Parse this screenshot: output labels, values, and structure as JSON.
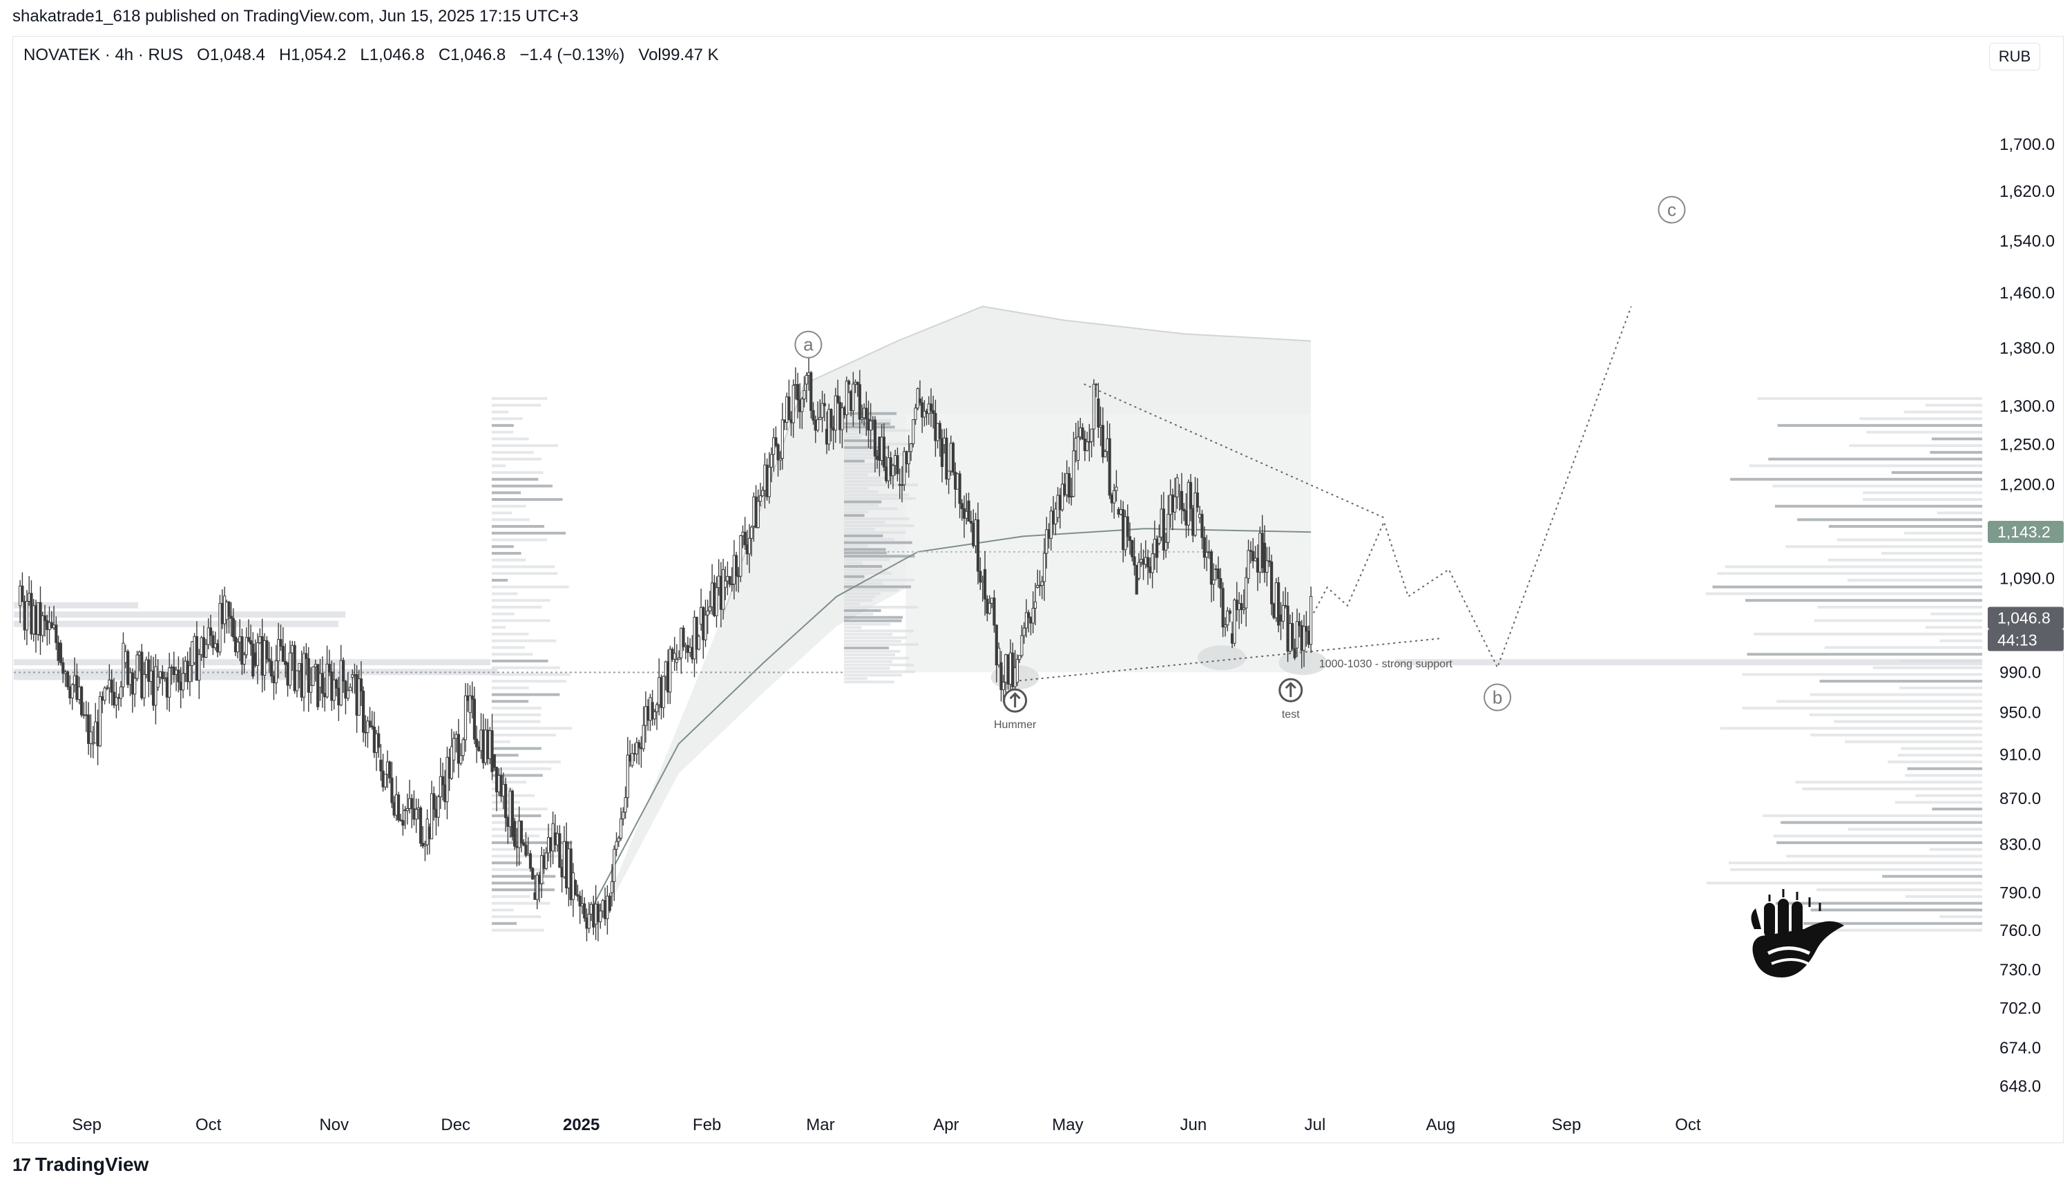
{
  "header": {
    "published_line": "shakatrade1_618 published on TradingView.com, Jun 15, 2025 17:15 UTC+3"
  },
  "legend": {
    "symbol": "NOVATEK · 4h · RUS",
    "o_label": "O",
    "o_val": "1,048.4",
    "h_label": "H",
    "h_val": "1,054.2",
    "l_label": "L",
    "l_val": "1,046.8",
    "c_label": "C",
    "c_val": "1,046.8",
    "change": "−1.4 (−0.13%)",
    "vol_label": "Vol",
    "vol_val": "99.47 K"
  },
  "currency_button": "RUB",
  "footer": {
    "brand": "TradingView",
    "mark": "17"
  },
  "colors": {
    "candle": "#3c3c3c",
    "profile": "#dcdfe2",
    "profile_dark": "#9aa0a6",
    "vwap": "#7d8f86",
    "band": "#edf0ef",
    "badge_green": "#7d9a8d",
    "badge_gray": "#5d6066"
  },
  "chart_data": {
    "type": "candlestick",
    "interval": "4h",
    "symbol": "NOVATEK",
    "currency": "RUB",
    "y_scale": "log",
    "ylim": [
      640,
      1760
    ],
    "x_labels": [
      "Sep",
      "Oct",
      "Nov",
      "Dec",
      "2025",
      "Feb",
      "Mar",
      "Apr",
      "May",
      "Jun",
      "Jul",
      "Aug",
      "Sep",
      "Oct"
    ],
    "y_ticks": [
      "1,700.0",
      "1,620.0",
      "1,540.0",
      "1,460.0",
      "1,380.0",
      "1,300.0",
      "1,250.0",
      "1,200.0",
      "1,090.0",
      "990.0",
      "950.0",
      "910.0",
      "870.0",
      "830.0",
      "790.0",
      "760.0",
      "730.0",
      "702.0",
      "674.0",
      "648.0"
    ],
    "y_tick_values": [
      1700,
      1620,
      1540,
      1460,
      1380,
      1300,
      1250,
      1200,
      1090,
      990,
      950,
      910,
      870,
      830,
      790,
      760,
      730,
      702,
      674,
      648
    ],
    "price_badges": [
      {
        "text": "1,143.2",
        "value": 1143.2,
        "style": "green"
      },
      {
        "text": "1,046.8",
        "value": 1046.8,
        "style": "gray"
      },
      {
        "text": "44:13",
        "value": null,
        "style": "gray-sub"
      }
    ],
    "price_path": [
      [
        "2024-08-15",
        1060
      ],
      [
        "2024-08-25",
        1020
      ],
      [
        "2024-09-02",
        920
      ],
      [
        "2024-09-10",
        1000
      ],
      [
        "2024-09-18",
        975
      ],
      [
        "2024-09-27",
        1000
      ],
      [
        "2024-10-05",
        1045
      ],
      [
        "2024-10-12",
        1010
      ],
      [
        "2024-10-20",
        1000
      ],
      [
        "2024-10-28",
        975
      ],
      [
        "2024-11-05",
        985
      ],
      [
        "2024-11-12",
        905
      ],
      [
        "2024-11-18",
        860
      ],
      [
        "2024-11-24",
        845
      ],
      [
        "2024-11-30",
        905
      ],
      [
        "2024-12-04",
        950
      ],
      [
        "2024-12-10",
        910
      ],
      [
        "2024-12-15",
        850
      ],
      [
        "2024-12-20",
        790
      ],
      [
        "2024-12-25",
        840
      ],
      [
        "2024-12-30",
        800
      ],
      [
        "2025-01-04",
        765
      ],
      [
        "2025-01-08",
        790
      ],
      [
        "2025-01-13",
        900
      ],
      [
        "2025-01-18",
        960
      ],
      [
        "2025-01-24",
        1000
      ],
      [
        "2025-01-30",
        1040
      ],
      [
        "2025-02-05",
        1080
      ],
      [
        "2025-02-12",
        1150
      ],
      [
        "2025-02-18",
        1250
      ],
      [
        "2025-02-25",
        1330
      ],
      [
        "2025-03-02",
        1270
      ],
      [
        "2025-03-08",
        1320
      ],
      [
        "2025-03-15",
        1260
      ],
      [
        "2025-03-20",
        1200
      ],
      [
        "2025-03-25",
        1310
      ],
      [
        "2025-03-31",
        1250
      ],
      [
        "2025-04-06",
        1180
      ],
      [
        "2025-04-10",
        1100
      ],
      [
        "2025-04-14",
        1000
      ],
      [
        "2025-04-18",
        980
      ],
      [
        "2025-04-23",
        1080
      ],
      [
        "2025-04-28",
        1160
      ],
      [
        "2025-05-03",
        1230
      ],
      [
        "2025-05-08",
        1310
      ],
      [
        "2025-05-13",
        1170
      ],
      [
        "2025-05-18",
        1090
      ],
      [
        "2025-05-23",
        1130
      ],
      [
        "2025-05-28",
        1190
      ],
      [
        "2025-06-02",
        1160
      ],
      [
        "2025-06-06",
        1100
      ],
      [
        "2025-06-10",
        1030
      ],
      [
        "2025-06-14",
        1090
      ],
      [
        "2025-06-18",
        1130
      ],
      [
        "2025-06-22",
        1050
      ],
      [
        "2025-06-26",
        1015
      ],
      [
        "2025-06-30",
        1046.8
      ]
    ],
    "projection_path": [
      [
        "2025-07-04",
        1080
      ],
      [
        "2025-07-09",
        1060
      ],
      [
        "2025-07-18",
        1155
      ],
      [
        "2025-07-24",
        1070
      ],
      [
        "2025-08-03",
        1100
      ],
      [
        "2025-08-15",
        995
      ],
      [
        "2025-09-17",
        1440
      ]
    ],
    "vwap_line": [
      [
        "2025-01-04",
        780
      ],
      [
        "2025-01-25",
        920
      ],
      [
        "2025-02-15",
        1000
      ],
      [
        "2025-03-05",
        1070
      ],
      [
        "2025-03-25",
        1120
      ],
      [
        "2025-04-20",
        1138
      ],
      [
        "2025-05-20",
        1147
      ],
      [
        "2025-06-30",
        1143
      ]
    ],
    "upper_band": [
      [
        "2025-02-05",
        1050
      ],
      [
        "2025-02-25",
        1330
      ],
      [
        "2025-03-20",
        1390
      ],
      [
        "2025-04-10",
        1440
      ],
      [
        "2025-04-30",
        1420
      ],
      [
        "2025-05-30",
        1400
      ],
      [
        "2025-06-30",
        1390
      ]
    ],
    "resistance_line": [
      [
        "2025-05-05",
        1330
      ],
      [
        "2025-07-18",
        1160
      ]
    ],
    "support_line": [
      [
        "2025-04-15",
        980
      ],
      [
        "2025-08-01",
        1025
      ]
    ],
    "annotations": [
      {
        "text": "a",
        "date": "2025-02-26",
        "value": 1385,
        "kind": "wave"
      },
      {
        "text": "b",
        "date": "2025-08-15",
        "value": 965,
        "kind": "wave"
      },
      {
        "text": "c",
        "date": "2025-09-27",
        "value": 1590,
        "kind": "wave"
      },
      {
        "text": "Hummer",
        "date": "2025-04-18",
        "value": 935,
        "kind": "label"
      },
      {
        "text": "test",
        "date": "2025-06-25",
        "value": 945,
        "kind": "label"
      },
      {
        "text": "1000-1030 - strong support",
        "date": "2025-07-02",
        "value": 995,
        "kind": "note"
      }
    ]
  }
}
